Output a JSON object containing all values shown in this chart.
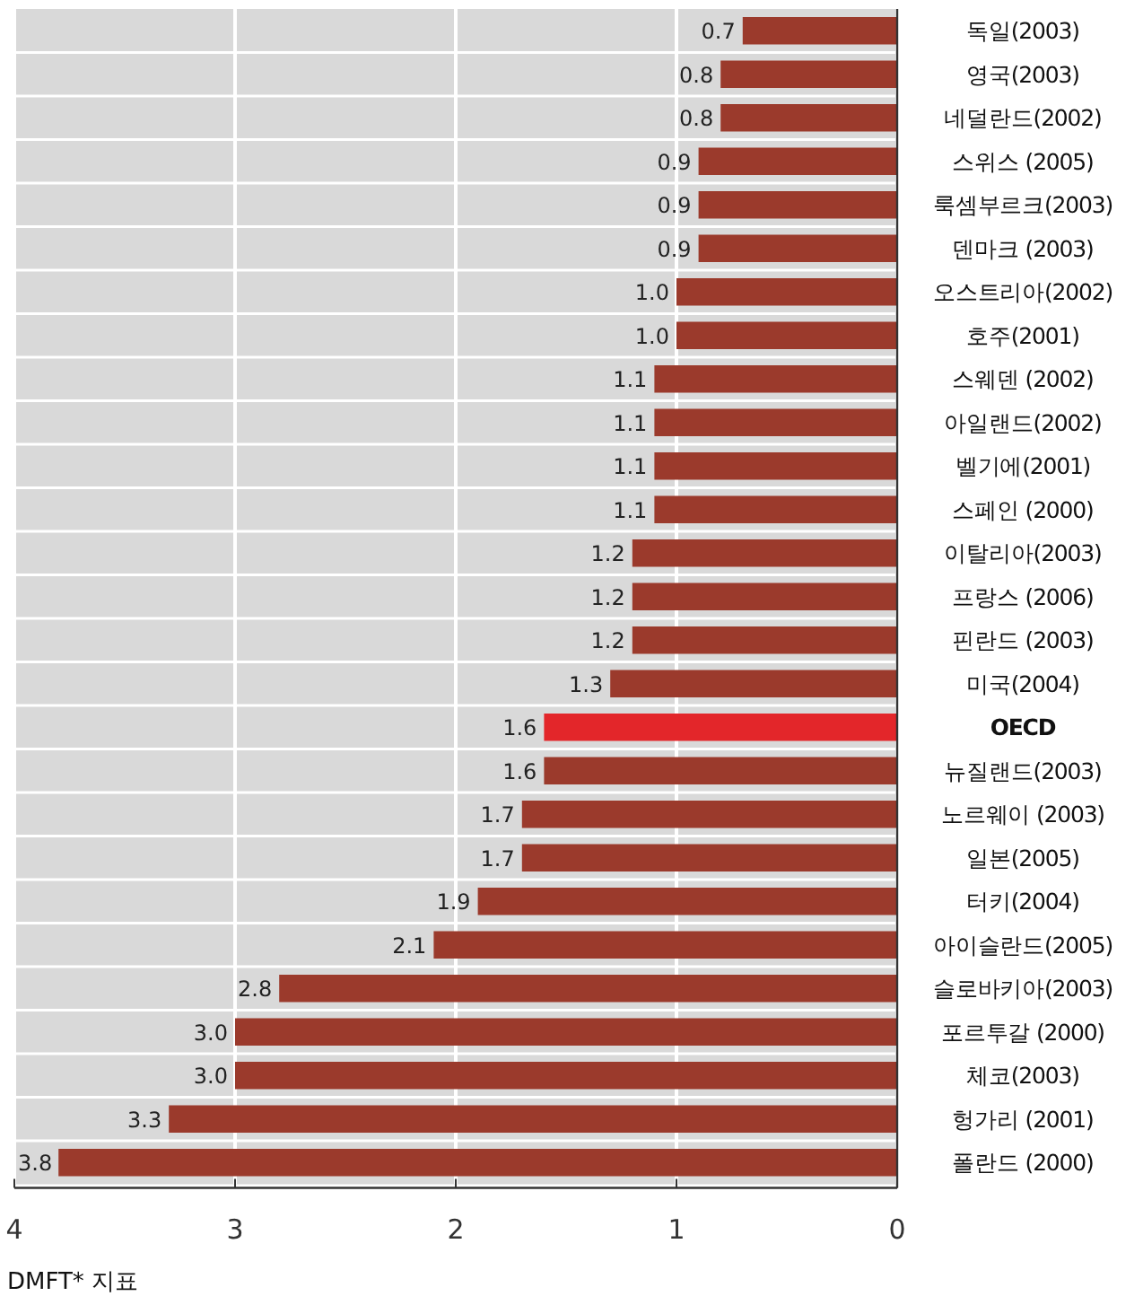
{
  "chart_data": {
    "type": "bar",
    "orientation": "horizontal",
    "xlabel": "DMFT* 지표",
    "categories": [
      "독일(2003)",
      "영국(2003)",
      "네덜란드(2002)",
      "스위스 (2005)",
      "룩셈부르크(2003)",
      "덴마크 (2003)",
      "오스트리아(2002)",
      "호주(2001)",
      "스웨덴 (2002)",
      "아일랜드(2002)",
      "벨기에(2001)",
      "스페인 (2000)",
      "이탈리아(2003)",
      "프랑스 (2006)",
      "핀란드 (2003)",
      "미국(2004)",
      "OECD",
      "뉴질랜드(2003)",
      "노르웨이 (2003)",
      "일본(2005)",
      "터키(2004)",
      "아이슬란드(2005)",
      "슬로바키아(2003)",
      "포르투갈 (2000)",
      "체코(2003)",
      "헝가리 (2001)",
      "폴란드 (2000)"
    ],
    "values": [
      0.7,
      0.8,
      0.8,
      0.9,
      0.9,
      0.9,
      1.0,
      1.0,
      1.1,
      1.1,
      1.1,
      1.1,
      1.2,
      1.2,
      1.2,
      1.3,
      1.6,
      1.6,
      1.7,
      1.7,
      1.9,
      2.1,
      2.8,
      3.0,
      3.0,
      3.3,
      3.8
    ],
    "value_labels": [
      "0.7",
      "0.8",
      "0.8",
      "0.9",
      "0.9",
      "0.9",
      "1.0",
      "1.0",
      "1.1",
      "1.1",
      "1.1",
      "1.1",
      "1.2",
      "1.2",
      "1.2",
      "1.3",
      "1.6",
      "1.6",
      "1.7",
      "1.7",
      "1.9",
      "2.1",
      "2.8",
      "3.0",
      "3.0",
      "3.3",
      "3.8"
    ],
    "colors": [
      "#9b3a2c",
      "#9b3a2c",
      "#9b3a2c",
      "#9b3a2c",
      "#9b3a2c",
      "#9b3a2c",
      "#9b3a2c",
      "#9b3a2c",
      "#9b3a2c",
      "#9b3a2c",
      "#9b3a2c",
      "#9b3a2c",
      "#9b3a2c",
      "#9b3a2c",
      "#9b3a2c",
      "#9b3a2c",
      "#e3262a",
      "#9b3a2c",
      "#9b3a2c",
      "#9b3a2c",
      "#9b3a2c",
      "#9b3a2c",
      "#9b3a2c",
      "#9b3a2c",
      "#9b3a2c",
      "#9b3a2c",
      "#9b3a2c"
    ],
    "xlim": [
      4,
      0
    ],
    "xticks": [
      4,
      3,
      2,
      1,
      0
    ],
    "grid": "x"
  }
}
